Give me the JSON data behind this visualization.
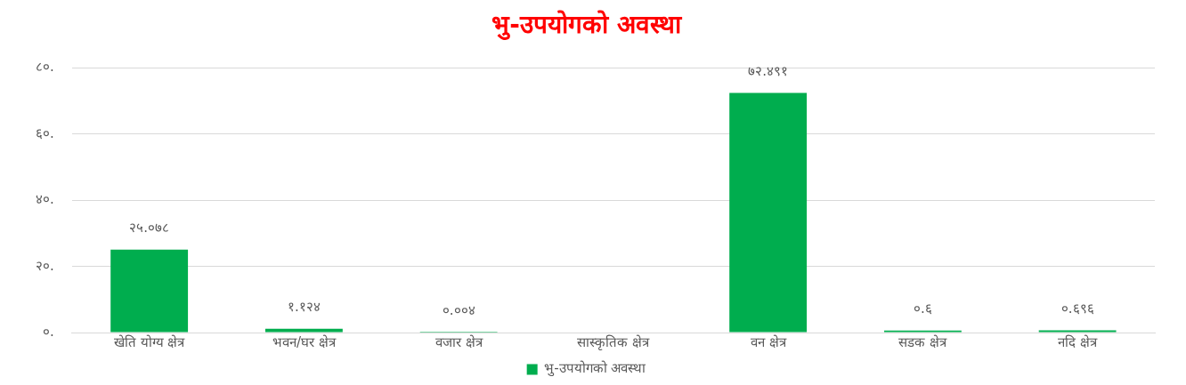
{
  "chart_data": {
    "type": "bar",
    "title": "भु-उपयोगको अवस्था",
    "categories": [
      "खेति योग्य क्षेत्र",
      "भवन/घर क्षेत्र",
      "वजार क्षेत्र",
      "सास्कृतिक क्षेत्र",
      "वन क्षेत्र",
      "सडक क्षेत्र",
      "नदि क्षेत्र"
    ],
    "series": [
      {
        "name": "भु-उपयोगको अवस्था",
        "color": "#00ad4e",
        "values": [
          25.078,
          1.124,
          0.004,
          null,
          72.491,
          0.6,
          0.696
        ],
        "value_labels": [
          "२५.०७८",
          "१.१२४",
          "०.००४",
          null,
          "७२.४९१",
          "०.६",
          "०.६९६"
        ]
      }
    ],
    "ylim": [
      0,
      80
    ],
    "yticks": [
      {
        "value": 0,
        "label": "०."
      },
      {
        "value": 20,
        "label": "२०."
      },
      {
        "value": 40,
        "label": "४०."
      },
      {
        "value": 60,
        "label": "६०."
      },
      {
        "value": 80,
        "label": "८०."
      }
    ],
    "grid": "y",
    "legend": "bottom"
  }
}
